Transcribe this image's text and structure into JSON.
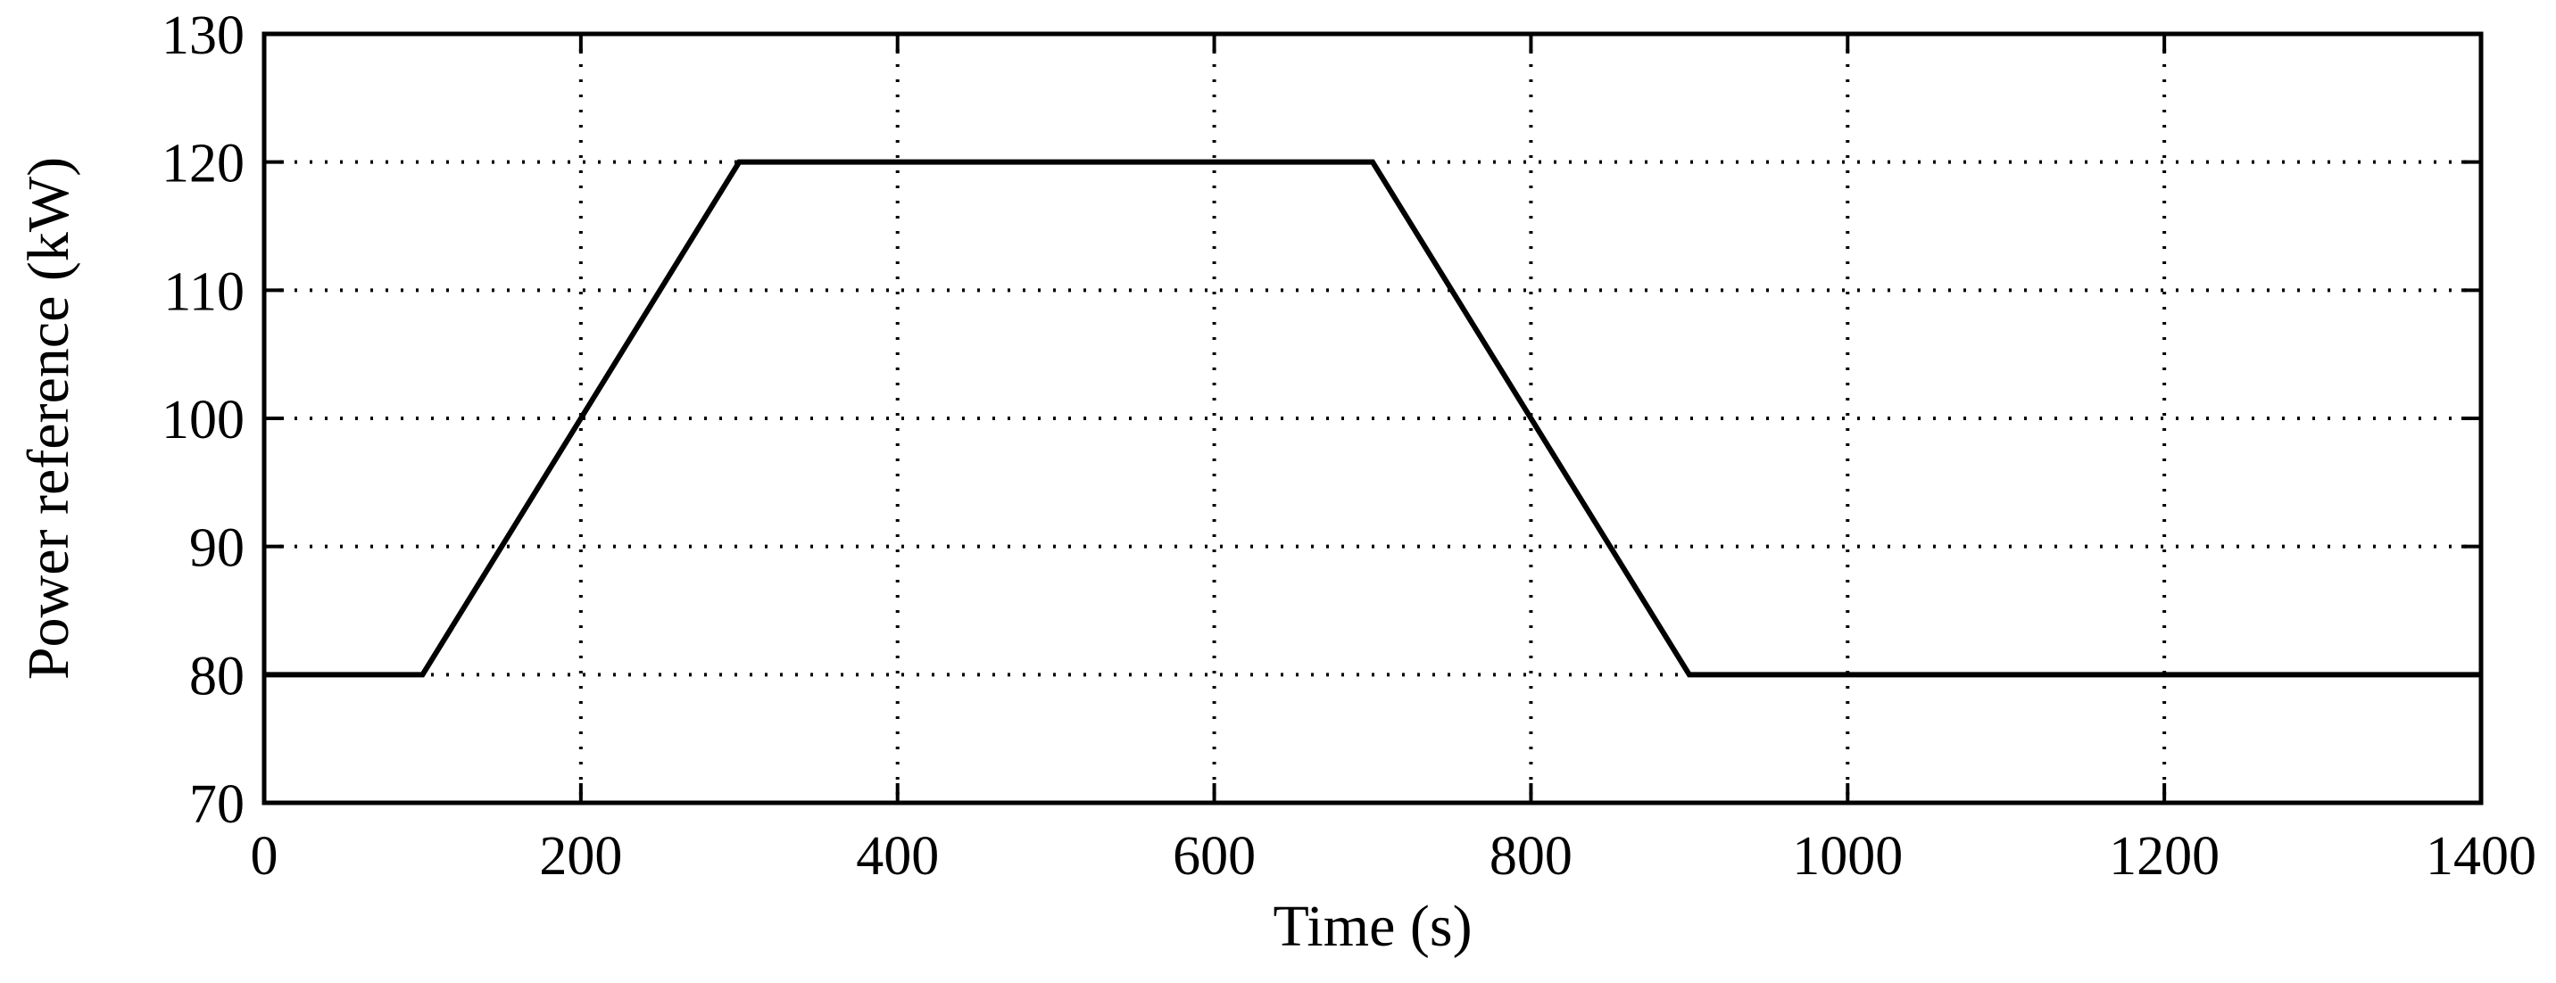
{
  "chart_data": {
    "type": "line",
    "title": "",
    "xlabel": "Time (s)",
    "ylabel": "Power reference (kW)",
    "xlim": [
      0,
      1400
    ],
    "ylim": [
      70,
      130
    ],
    "xticks": [
      0,
      200,
      400,
      600,
      800,
      1000,
      1200,
      1400
    ],
    "yticks": [
      70,
      80,
      90,
      100,
      110,
      120,
      130
    ],
    "xtick_labels": [
      "0",
      "200",
      "400",
      "600",
      "800",
      "1000",
      "1200",
      "1400"
    ],
    "ytick_labels": [
      "70",
      "80",
      "90",
      "100",
      "110",
      "120",
      "130"
    ],
    "grid": true,
    "legend": "none",
    "colors": {
      "line": "#000000",
      "grid": "#000000",
      "axes": "#000000"
    },
    "series": [
      {
        "x": [
          0,
          100,
          300,
          700,
          900,
          1400
        ],
        "y": [
          80,
          80,
          120,
          120,
          80,
          80
        ]
      }
    ]
  }
}
